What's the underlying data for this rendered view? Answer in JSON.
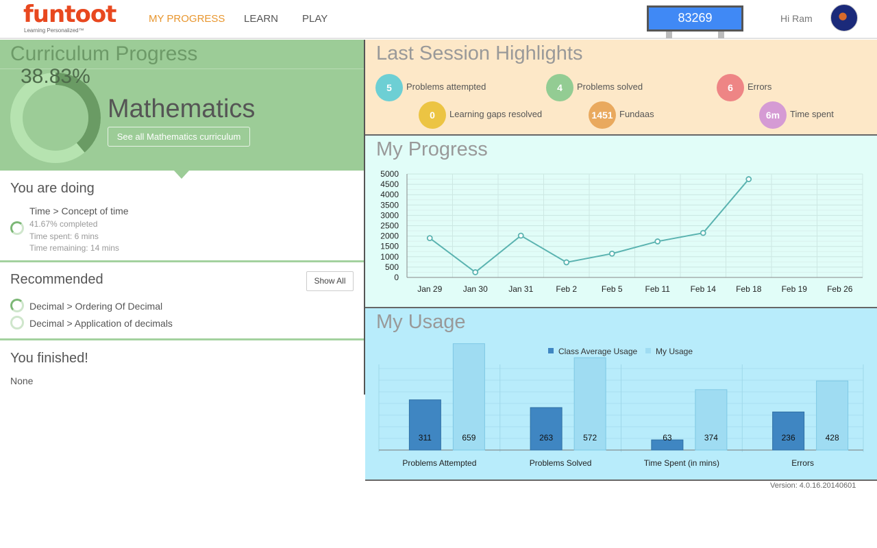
{
  "header": {
    "logo_text": "funtoot",
    "logo_tagline": "Learning Personalized™",
    "nav": [
      "MY PROGRESS",
      "LEARN",
      "PLAY"
    ],
    "score": "83269",
    "greeting": "Hi Ram",
    "colors": {
      "logo": "#e8481f",
      "active_nav": "#e8962e",
      "score_bg": "#4089f5"
    }
  },
  "curriculum": {
    "title": "Curriculum Progress",
    "percent_text": "38.83%",
    "percent": 38.83,
    "subject": "Mathematics",
    "see_all_button": "See all Mathematics curriculum",
    "bg_color": "#9ccc97"
  },
  "doing": {
    "heading": "You are doing",
    "topic": "Time > Concept of time",
    "completed": "41.67% completed",
    "time_spent": "Time spent: 6 mins",
    "time_remaining": "Time remaining: 14 mins"
  },
  "recommended": {
    "heading": "Recommended",
    "show_all": "Show All",
    "items": [
      "Decimal > Ordering Of Decimal",
      "Decimal > Application of decimals"
    ]
  },
  "finished": {
    "heading": "You finished!",
    "value": "None"
  },
  "last_session": {
    "title": "Last Session Highlights",
    "stats": [
      {
        "value": "5",
        "label": "Problems attempted",
        "color": "#6dcfd4"
      },
      {
        "value": "4",
        "label": "Problems solved",
        "color": "#93cc93"
      },
      {
        "value": "6",
        "label": "Errors",
        "color": "#ee8585"
      },
      {
        "value": "0",
        "label": "Learning gaps resolved",
        "color": "#ecc443"
      },
      {
        "value": "1451",
        "label": "Fundaas",
        "color": "#e9a95e"
      },
      {
        "value": "6m",
        "label": "Time spent",
        "color": "#d59bd4"
      }
    ]
  },
  "progress": {
    "title": "My Progress"
  },
  "usage": {
    "title": "My Usage"
  },
  "version": "Version: 4.0.16.20140601",
  "chart_data": [
    {
      "type": "line",
      "categories": [
        "Jan 29",
        "Jan 30",
        "Jan 31",
        "Feb 2",
        "Feb 5",
        "Feb 11",
        "Feb 14",
        "Feb 18",
        "Feb 19",
        "Feb 26"
      ],
      "series": [
        {
          "values": [
            1900,
            250,
            2020,
            730,
            1150,
            1740,
            2150,
            4750,
            null,
            null
          ],
          "color": "#5ab3b0"
        }
      ],
      "yticks": [
        "5000",
        "4500",
        "4000",
        "3500",
        "3000",
        "2500",
        "2000",
        "1500",
        "1000",
        "500",
        "0"
      ],
      "ylim": [
        0,
        5000
      ],
      "grid": true
    },
    {
      "type": "bar",
      "categories": [
        "Problems Attempted",
        "Problems Solved",
        "Time Spent (in mins)",
        "Errors"
      ],
      "series": [
        {
          "name": "Class Average Usage",
          "values": [
            311,
            263,
            63,
            236
          ],
          "color": "#3f86c2"
        },
        {
          "name": "My Usage",
          "values": [
            659,
            572,
            374,
            428
          ],
          "color": "#9fdcf2"
        }
      ],
      "ylim": [
        0,
        700
      ],
      "legend": "top-center",
      "grid": true
    }
  ]
}
